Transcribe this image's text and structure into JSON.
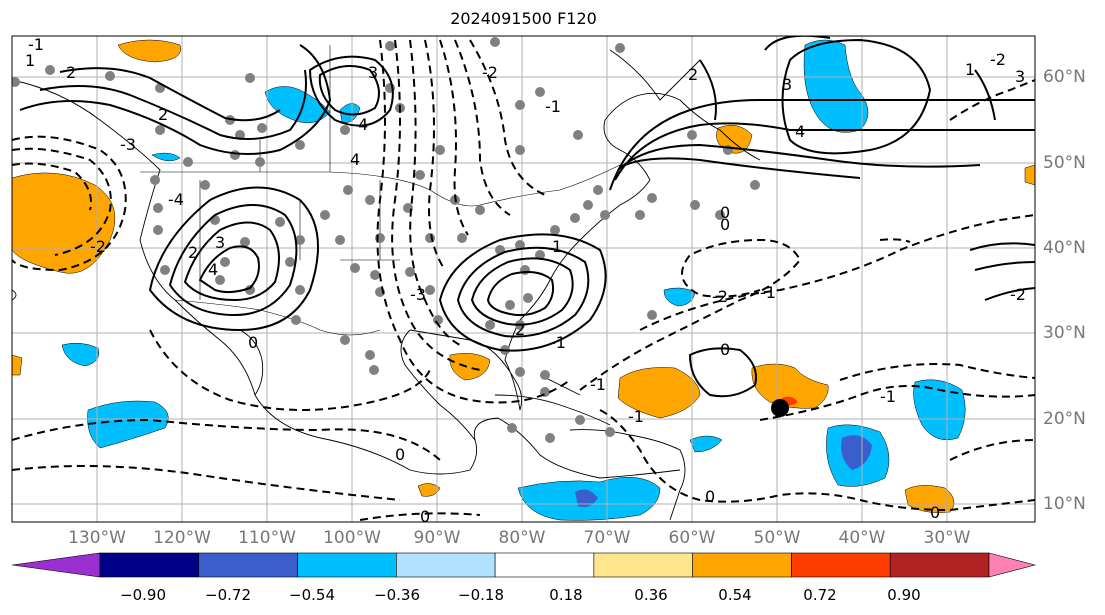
{
  "title": "2024091500 F120",
  "lon_labels": [
    "130°W",
    "120°W",
    "110°W",
    "100°W",
    "90°W",
    "80°W",
    "70°W",
    "60°W",
    "50°W",
    "40°W",
    "30°W"
  ],
  "lat_labels": [
    "60°N",
    "50°N",
    "40°N",
    "30°N",
    "20°N",
    "10°N"
  ],
  "colorbar": {
    "labels": [
      "−0.90",
      "−0.72",
      "−0.54",
      "−0.36",
      "−0.18",
      "0.18",
      "0.36",
      "0.54",
      "0.72",
      "0.90"
    ],
    "colors": [
      "#9b30d0",
      "#00008b",
      "#3a5fcd",
      "#00bfff",
      "#b0e2ff",
      "#ffffff",
      "#ffe68c",
      "#ffa500",
      "#ff3c00",
      "#b22222",
      "#ff80b4"
    ]
  },
  "contour_labels": [
    "-1",
    "1",
    "2",
    "2",
    "3",
    "4",
    "-2",
    "-3",
    "-4",
    "3",
    "4",
    "2",
    "0",
    "0",
    "0",
    "-1",
    "-2",
    "-1",
    "1",
    "2",
    "-1",
    "0",
    "0",
    "-2",
    "-1",
    "-1",
    "-2",
    "3",
    "4",
    "2",
    "1",
    "-1",
    "0",
    "0",
    "0",
    "-2",
    "3",
    "4",
    "-3"
  ],
  "colors": {
    "shade_orange": "#ffa500",
    "shade_blue": "#00bfff",
    "shade_purple": "#3a5fcd",
    "stipple": "#808080",
    "grid": "#b0b0b0"
  }
}
